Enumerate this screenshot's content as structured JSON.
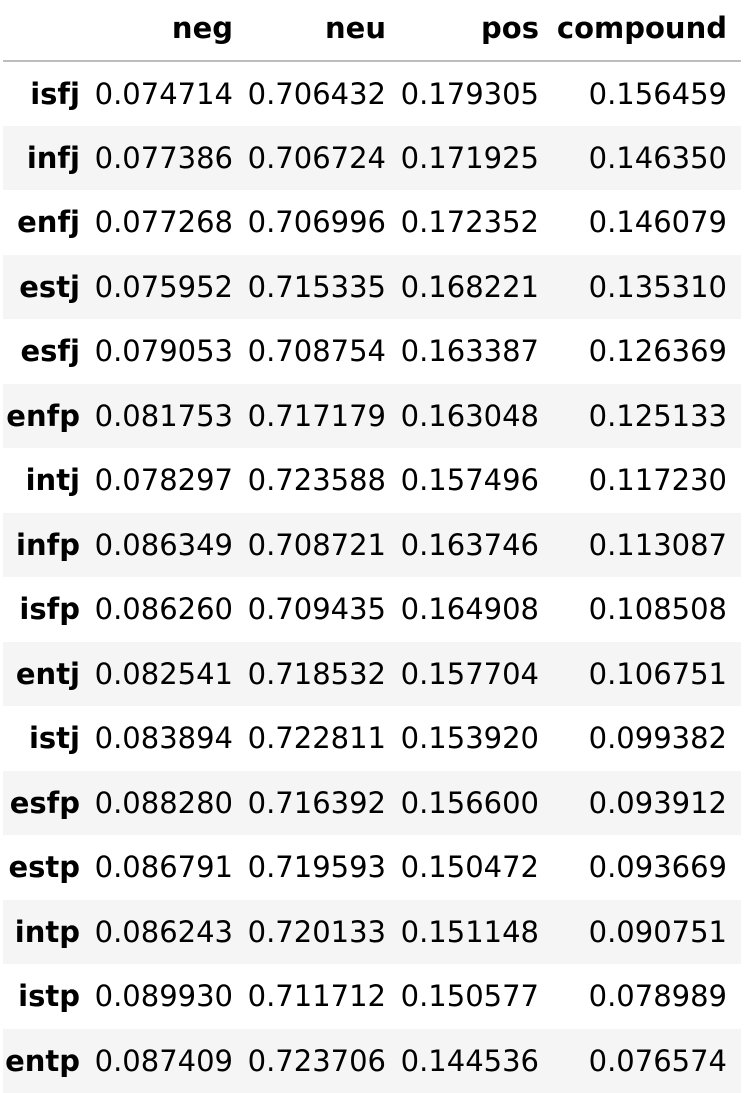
{
  "table": {
    "index_header": "",
    "columns": [
      "neg",
      "neu",
      "pos",
      "compound"
    ],
    "rows": [
      {
        "label": "isfj",
        "neg": "0.074714",
        "neu": "0.706432",
        "pos": "0.179305",
        "compound": "0.156459"
      },
      {
        "label": "infj",
        "neg": "0.077386",
        "neu": "0.706724",
        "pos": "0.171925",
        "compound": "0.146350"
      },
      {
        "label": "enfj",
        "neg": "0.077268",
        "neu": "0.706996",
        "pos": "0.172352",
        "compound": "0.146079"
      },
      {
        "label": "estj",
        "neg": "0.075952",
        "neu": "0.715335",
        "pos": "0.168221",
        "compound": "0.135310"
      },
      {
        "label": "esfj",
        "neg": "0.079053",
        "neu": "0.708754",
        "pos": "0.163387",
        "compound": "0.126369"
      },
      {
        "label": "enfp",
        "neg": "0.081753",
        "neu": "0.717179",
        "pos": "0.163048",
        "compound": "0.125133"
      },
      {
        "label": "intj",
        "neg": "0.078297",
        "neu": "0.723588",
        "pos": "0.157496",
        "compound": "0.117230"
      },
      {
        "label": "infp",
        "neg": "0.086349",
        "neu": "0.708721",
        "pos": "0.163746",
        "compound": "0.113087"
      },
      {
        "label": "isfp",
        "neg": "0.086260",
        "neu": "0.709435",
        "pos": "0.164908",
        "compound": "0.108508"
      },
      {
        "label": "entj",
        "neg": "0.082541",
        "neu": "0.718532",
        "pos": "0.157704",
        "compound": "0.106751"
      },
      {
        "label": "istj",
        "neg": "0.083894",
        "neu": "0.722811",
        "pos": "0.153920",
        "compound": "0.099382"
      },
      {
        "label": "esfp",
        "neg": "0.088280",
        "neu": "0.716392",
        "pos": "0.156600",
        "compound": "0.093912"
      },
      {
        "label": "estp",
        "neg": "0.086791",
        "neu": "0.719593",
        "pos": "0.150472",
        "compound": "0.093669"
      },
      {
        "label": "intp",
        "neg": "0.086243",
        "neu": "0.720133",
        "pos": "0.151148",
        "compound": "0.090751"
      },
      {
        "label": "istp",
        "neg": "0.089930",
        "neu": "0.711712",
        "pos": "0.150577",
        "compound": "0.078989"
      },
      {
        "label": "entp",
        "neg": "0.087409",
        "neu": "0.723706",
        "pos": "0.144536",
        "compound": "0.076574"
      }
    ]
  }
}
